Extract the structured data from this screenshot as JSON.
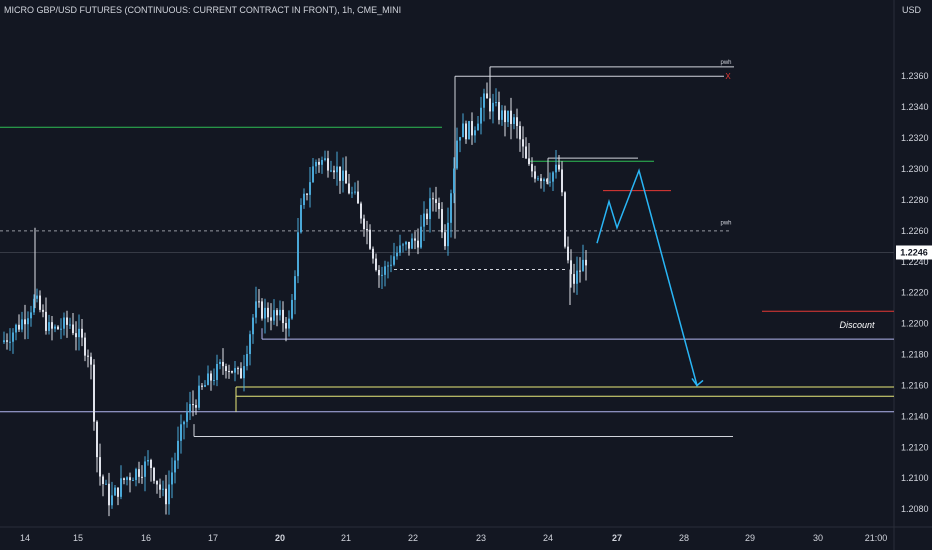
{
  "chart_data": {
    "type": "candlestick",
    "title": "MICRO GBP/USD FUTURES (CONTINUOUS: CURRENT CONTRACT IN FRONT), 1h, CME_MINI",
    "currency": "USD",
    "y_axis": {
      "ticks": [
        1.208,
        1.21,
        1.212,
        1.214,
        1.216,
        1.218,
        1.22,
        1.222,
        1.224,
        1.226,
        1.228,
        1.23,
        1.232,
        1.234,
        1.236
      ],
      "tick_labels": [
        "1.2080",
        "1.2100",
        "1.2120",
        "1.2140",
        "1.2160",
        "1.2180",
        "1.2200",
        "1.2220",
        "1.2240",
        "1.2260",
        "1.2280",
        "1.2300",
        "1.2320",
        "1.2340",
        "1.2360"
      ],
      "range": [
        1.2073,
        1.2386
      ]
    },
    "x_axis": {
      "labels": [
        {
          "text": "14",
          "bold": false
        },
        {
          "text": "15",
          "bold": false
        },
        {
          "text": "16",
          "bold": false
        },
        {
          "text": "17",
          "bold": false
        },
        {
          "text": "20",
          "bold": true
        },
        {
          "text": "21",
          "bold": false
        },
        {
          "text": "22",
          "bold": false
        },
        {
          "text": "23",
          "bold": false
        },
        {
          "text": "24",
          "bold": false
        },
        {
          "text": "27",
          "bold": true
        },
        {
          "text": "28",
          "bold": false
        },
        {
          "text": "29",
          "bold": false
        },
        {
          "text": "30",
          "bold": false
        },
        {
          "text": "21:00",
          "bold": false
        }
      ]
    },
    "current_price": "1.2246",
    "annotations": [
      {
        "text": "pwh",
        "price": 1.2366
      },
      {
        "text": "X",
        "price": 1.236
      },
      {
        "text": "pwh",
        "price": 1.2262
      },
      {
        "text": "Discount",
        "price": 1.2199
      }
    ],
    "levels": [
      {
        "price": 1.2327,
        "color": "#2ebd55",
        "style": "solid"
      },
      {
        "price": 1.236,
        "color": "#d1d4dc",
        "style": "solid"
      },
      {
        "price": 1.2366,
        "color": "#d1d4dc",
        "style": "solid"
      },
      {
        "price": 1.2307,
        "color": "#d1d4dc",
        "style": "solid"
      },
      {
        "price": 1.2305,
        "color": "#2ebd55",
        "style": "solid"
      },
      {
        "price": 1.2286,
        "color": "#e53935",
        "style": "solid"
      },
      {
        "price": 1.226,
        "color": "#9598a1",
        "style": "dashed"
      },
      {
        "price": 1.2235,
        "color": "#d1d4dc",
        "style": "dashed"
      },
      {
        "price": 1.2208,
        "color": "#e53935",
        "style": "solid"
      },
      {
        "price": 1.219,
        "color": "#b2b5f0",
        "style": "solid"
      },
      {
        "price": 1.2159,
        "color": "#e8e87a",
        "style": "solid"
      },
      {
        "price": 1.2153,
        "color": "#e8e87a",
        "style": "solid"
      },
      {
        "price": 1.2143,
        "color": "#b2b5f0",
        "style": "solid"
      },
      {
        "price": 1.2127,
        "color": "#d1d4dc",
        "style": "solid"
      }
    ],
    "projection": {
      "color": "#29b6f6",
      "path": [
        1.2252,
        1.2279,
        1.2262,
        1.2299,
        1.216
      ]
    },
    "colors": {
      "background": "#131722",
      "up_candle": "#4aa8d8",
      "down_candle": "#e0e3eb",
      "text": "#d1d4dc",
      "price_label_bg": "#ffffff",
      "price_label_text": "#131722"
    }
  }
}
